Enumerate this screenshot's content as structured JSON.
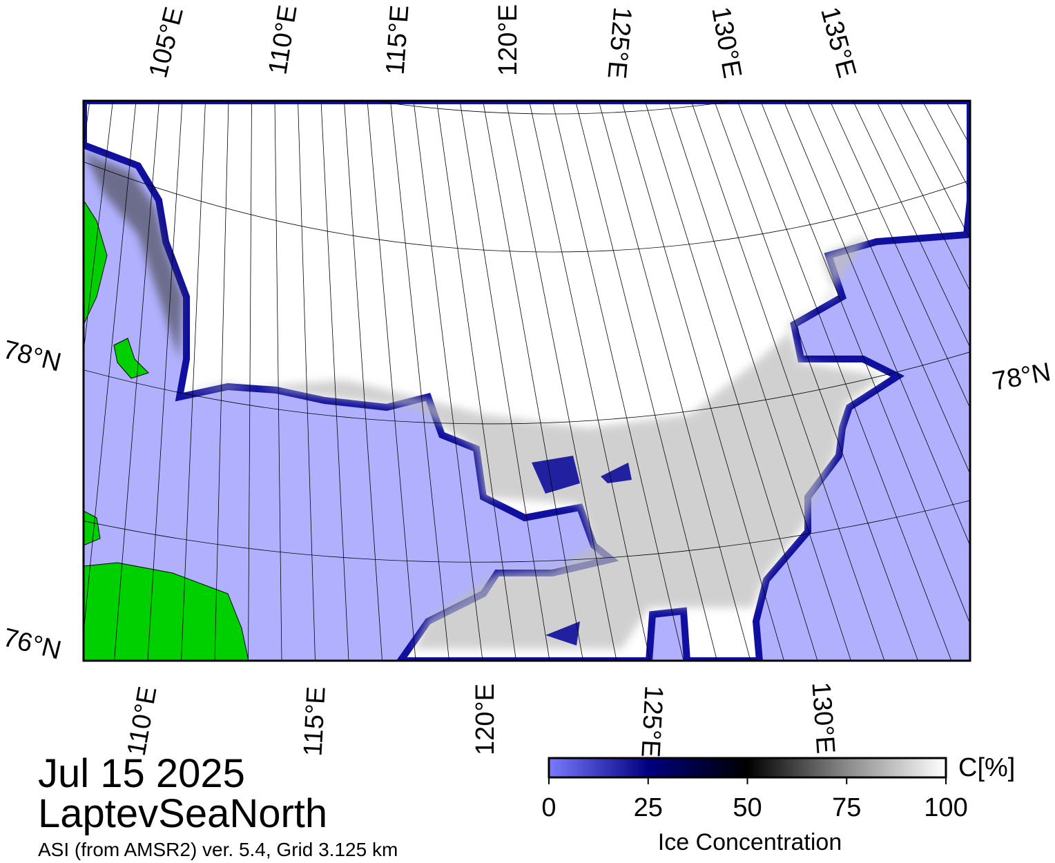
{
  "map": {
    "top_lon_labels": [
      "105°E",
      "110°E",
      "115°E",
      "120°E",
      "125°E",
      "130°E",
      "135°E"
    ],
    "bottom_lon_labels": [
      "110°E",
      "115°E",
      "120°E",
      "125°E",
      "130°E"
    ],
    "left_lat_labels": [
      "78°N",
      "76°N"
    ],
    "right_lat_labels": [
      "78°N"
    ]
  },
  "date": "Jul 15 2025",
  "region": "LaptevSeaNorth",
  "source": "ASI (from AMSR2) ver. 5.4,  Grid 3.125 km",
  "colorbar": {
    "range": [
      0,
      100
    ],
    "ticks": [
      0,
      25,
      50,
      75,
      100
    ],
    "unit_label": "C[%]",
    "title": "Ice Concentration"
  }
}
